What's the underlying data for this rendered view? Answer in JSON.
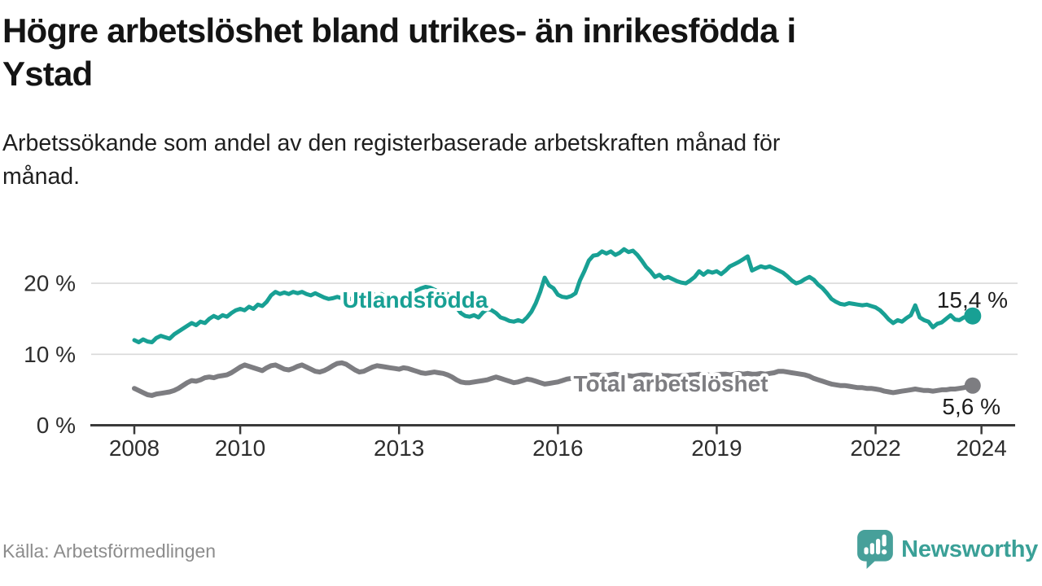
{
  "header": {
    "title_lines": [
      "Högre arbetslöshet bland utrikes- än inrikesfödda i",
      "Ystad"
    ],
    "subtitle_lines": [
      "Arbetssökande som andel av den registerbaserade arbetskraften månad för",
      "månad."
    ]
  },
  "footer": {
    "source": "Källa: Arbetsförmedlingen",
    "brand": "Newsworthy"
  },
  "colors": {
    "foreign_born_line": "#18a094",
    "total_line": "#7d7d81",
    "grid": "#d9d9d9",
    "axis": "#3a3a3a",
    "tick_text": "#2e2e2e",
    "end_label_text": "#1c1c1c",
    "brand_teal": "#3aa097",
    "icon_teal": "#47a09a",
    "source_text": "#8c8c8c"
  },
  "chart_data": {
    "type": "line",
    "title": "Högre arbetslöshet bland utrikes- än inrikesfödda i Ystad",
    "subtitle": "Arbetssökande som andel av den registerbaserade arbetskraften månad för månad.",
    "unit": "%",
    "x_note": "monthly values, Jan 2008 – Nov 2023",
    "x_ticks": [
      2008,
      2010,
      2013,
      2016,
      2019,
      2022,
      2024
    ],
    "y_ticks": [
      {
        "value": 0,
        "label": "0 %"
      },
      {
        "value": 10,
        "label": "10 %"
      },
      {
        "value": 20,
        "label": "20 %"
      }
    ],
    "ylim": [
      0,
      26
    ],
    "grid": "horizontal",
    "legend_position": "inline",
    "series": [
      {
        "name": "Utlandsfödda",
        "color": "#18a094",
        "end_label": "15,4 %",
        "last_value": 15.4,
        "values": [
          12.0,
          11.7,
          12.1,
          11.8,
          11.7,
          12.3,
          12.6,
          12.4,
          12.2,
          12.8,
          13.2,
          13.6,
          14.0,
          14.4,
          14.1,
          14.6,
          14.4,
          15.0,
          15.4,
          15.1,
          15.5,
          15.3,
          15.8,
          16.2,
          16.4,
          16.2,
          16.7,
          16.4,
          17.0,
          16.8,
          17.4,
          18.3,
          18.8,
          18.5,
          18.7,
          18.5,
          18.8,
          18.6,
          18.8,
          18.5,
          18.3,
          18.6,
          18.3,
          18.0,
          17.8,
          17.9,
          18.1,
          17.9,
          18.0,
          17.8,
          17.6,
          17.5,
          17.8,
          18.2,
          18.6,
          18.0,
          18.5,
          18.1,
          17.7,
          17.5,
          17.6,
          17.9,
          18.3,
          18.7,
          19.0,
          19.3,
          19.5,
          19.4,
          19.1,
          18.8,
          18.7,
          18.5,
          17.6,
          16.6,
          15.8,
          15.4,
          15.3,
          15.5,
          15.2,
          15.9,
          16.4,
          16.2,
          15.8,
          15.2,
          15.0,
          14.7,
          14.6,
          14.8,
          14.6,
          15.2,
          16.0,
          17.2,
          18.8,
          20.8,
          19.7,
          19.3,
          18.4,
          18.1,
          18.0,
          18.2,
          18.6,
          20.4,
          21.7,
          23.2,
          23.9,
          24.0,
          24.5,
          24.2,
          24.5,
          24.0,
          24.3,
          24.8,
          24.4,
          24.6,
          24.0,
          23.2,
          22.3,
          21.7,
          20.9,
          21.2,
          20.7,
          20.9,
          20.6,
          20.3,
          20.1,
          20.0,
          20.4,
          20.9,
          21.7,
          21.2,
          21.7,
          21.5,
          21.7,
          21.3,
          21.8,
          22.4,
          22.7,
          23.0,
          23.4,
          23.8,
          21.8,
          22.1,
          22.4,
          22.2,
          22.4,
          22.1,
          21.8,
          21.5,
          21.0,
          20.4,
          20.0,
          20.2,
          20.6,
          20.9,
          20.5,
          19.8,
          19.3,
          18.6,
          17.8,
          17.4,
          17.1,
          17.0,
          17.2,
          17.1,
          17.0,
          16.9,
          17.0,
          16.8,
          16.6,
          16.2,
          15.6,
          14.9,
          14.4,
          14.8,
          14.6,
          15.1,
          15.5,
          16.9,
          15.2,
          14.8,
          14.6,
          13.8,
          14.3,
          14.5,
          15.0,
          15.5,
          14.9,
          14.8,
          15.2,
          15.3,
          15.4
        ]
      },
      {
        "name": "Total arbetslöshet",
        "color": "#7d7d81",
        "end_label": "5,6 %",
        "last_value": 5.6,
        "values": [
          5.2,
          4.9,
          4.6,
          4.3,
          4.2,
          4.4,
          4.5,
          4.6,
          4.7,
          4.9,
          5.2,
          5.6,
          6.0,
          6.3,
          6.2,
          6.4,
          6.7,
          6.8,
          6.7,
          6.9,
          7.0,
          7.1,
          7.4,
          7.8,
          8.2,
          8.5,
          8.3,
          8.1,
          7.9,
          7.7,
          8.1,
          8.4,
          8.5,
          8.2,
          7.9,
          7.8,
          8.0,
          8.3,
          8.5,
          8.2,
          7.9,
          7.6,
          7.5,
          7.7,
          8.0,
          8.4,
          8.7,
          8.8,
          8.6,
          8.2,
          7.8,
          7.5,
          7.6,
          7.9,
          8.2,
          8.4,
          8.3,
          8.2,
          8.1,
          8.0,
          7.9,
          8.1,
          8.0,
          7.8,
          7.6,
          7.4,
          7.3,
          7.4,
          7.5,
          7.4,
          7.3,
          7.1,
          6.8,
          6.4,
          6.1,
          6.0,
          6.0,
          6.1,
          6.2,
          6.3,
          6.4,
          6.6,
          6.8,
          6.6,
          6.4,
          6.2,
          6.0,
          6.1,
          6.3,
          6.5,
          6.4,
          6.2,
          6.0,
          5.8,
          5.9,
          6.0,
          6.1,
          6.3,
          6.5,
          6.6,
          6.8,
          6.9,
          7.0,
          7.0,
          7.1,
          7.1,
          7.0,
          7.0,
          7.1,
          7.2,
          7.1,
          7.0,
          7.0,
          6.9,
          7.0,
          7.1,
          7.1,
          7.0,
          7.0,
          7.1,
          7.0,
          7.0,
          6.9,
          6.9,
          7.0,
          7.0,
          7.1,
          7.1,
          7.2,
          7.1,
          7.1,
          7.0,
          7.1,
          7.2,
          7.2,
          7.1,
          7.2,
          7.3,
          7.2,
          7.3,
          7.2,
          7.2,
          7.3,
          7.2,
          7.3,
          7.4,
          7.6,
          7.6,
          7.5,
          7.4,
          7.3,
          7.2,
          7.1,
          6.9,
          6.6,
          6.4,
          6.2,
          6.0,
          5.8,
          5.7,
          5.6,
          5.6,
          5.5,
          5.4,
          5.3,
          5.3,
          5.2,
          5.2,
          5.1,
          5.0,
          4.8,
          4.7,
          4.6,
          4.7,
          4.8,
          4.9,
          5.0,
          5.1,
          5.0,
          4.9,
          4.9,
          4.8,
          4.9,
          5.0,
          5.0,
          5.1,
          5.1,
          5.2,
          5.3,
          5.5,
          5.6
        ]
      }
    ]
  }
}
